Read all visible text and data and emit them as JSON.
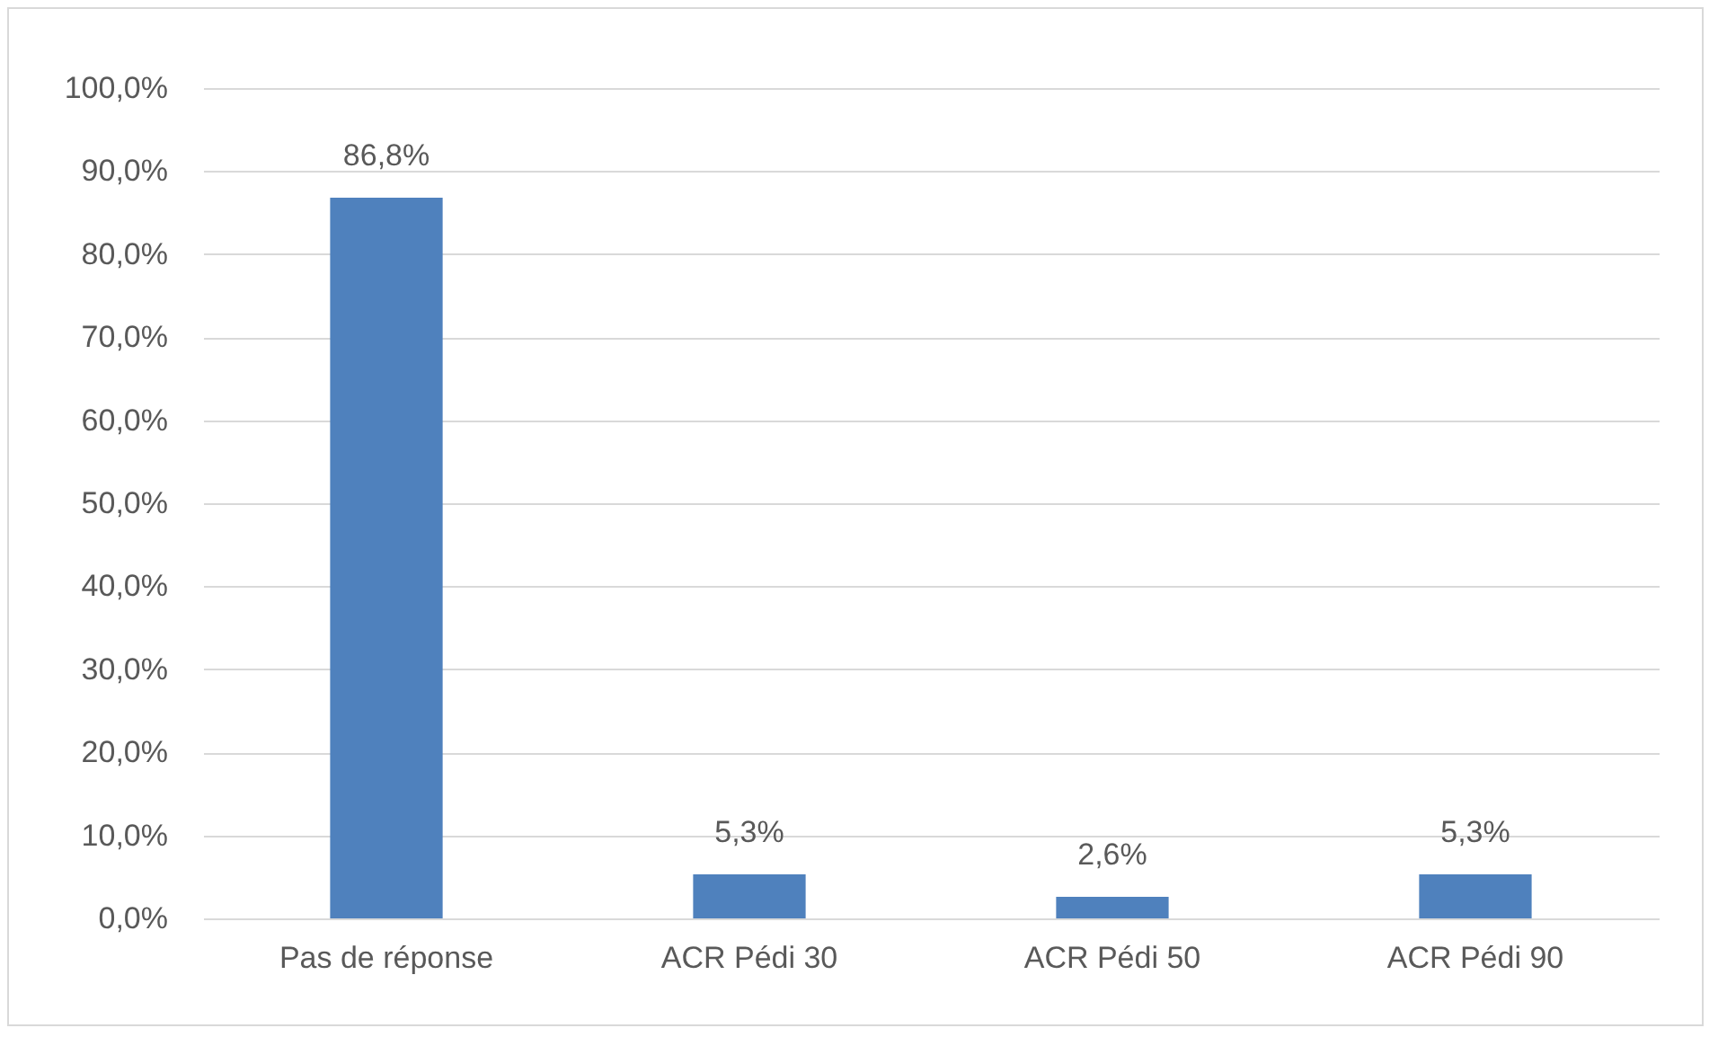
{
  "chart_data": {
    "type": "bar",
    "categories": [
      "Pas de réponse",
      "ACR Pédi 30",
      "ACR Pédi 50",
      "ACR Pédi 90"
    ],
    "values": [
      86.8,
      5.3,
      2.6,
      5.3
    ],
    "value_labels": [
      "86,8%",
      "5,3%",
      "2,6%",
      "5,3%"
    ],
    "color": "#4f81bd",
    "ylim": [
      0,
      100
    ],
    "yticks": [
      {
        "value": 0,
        "label": "0,0%"
      },
      {
        "value": 10,
        "label": "10,0%"
      },
      {
        "value": 20,
        "label": "20,0%"
      },
      {
        "value": 30,
        "label": "30,0%"
      },
      {
        "value": 40,
        "label": "40,0%"
      },
      {
        "value": 50,
        "label": "50,0%"
      },
      {
        "value": 60,
        "label": "60,0%"
      },
      {
        "value": 70,
        "label": "70,0%"
      },
      {
        "value": 80,
        "label": "80,0%"
      },
      {
        "value": 90,
        "label": "90,0%"
      },
      {
        "value": 100,
        "label": "100,0%"
      }
    ],
    "grid": "y"
  }
}
